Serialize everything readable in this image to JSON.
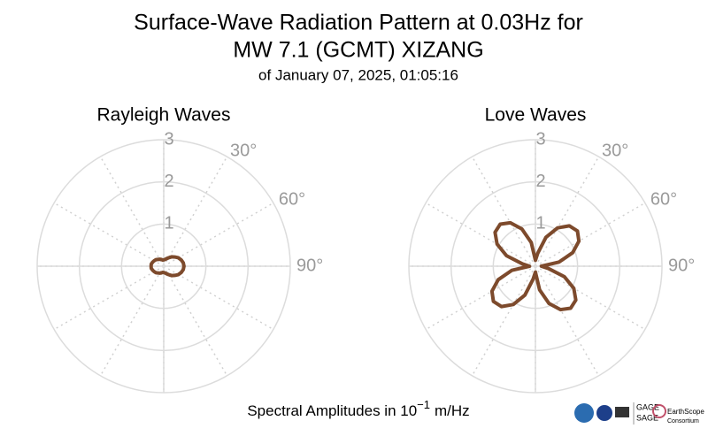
{
  "header": {
    "title": [
      "Surface-Wave Radiation Pattern at 0.03Hz for",
      "MW 7.1 (GCMT) XIZANG"
    ],
    "subtitle": "of January 07, 2025, 01:05:16"
  },
  "caption": {
    "prefix": "Spectral Amplitudes in 10",
    "exponent": "−1",
    "suffix": "m/Hz"
  },
  "logos": [
    "GAGE",
    "SAGE",
    "EarthScope",
    "Consortium"
  ],
  "chart_data": [
    {
      "type": "polar",
      "title": "Rayleigh Waves",
      "color": "#7d4a2c",
      "theta": [
        0,
        10,
        20,
        30,
        40,
        50,
        60,
        70,
        80,
        90,
        100,
        110,
        120,
        130,
        140,
        150,
        160,
        170,
        180,
        190,
        200,
        210,
        220,
        230,
        240,
        250,
        260,
        270,
        280,
        290,
        300,
        310,
        320,
        330,
        340,
        350
      ],
      "values": [
        0.15,
        0.16,
        0.19,
        0.23,
        0.29,
        0.34,
        0.4,
        0.44,
        0.47,
        0.48,
        0.47,
        0.44,
        0.4,
        0.34,
        0.29,
        0.23,
        0.19,
        0.16,
        0.15,
        0.15,
        0.17,
        0.19,
        0.21,
        0.24,
        0.26,
        0.28,
        0.3,
        0.3,
        0.3,
        0.28,
        0.26,
        0.24,
        0.21,
        0.19,
        0.17,
        0.15
      ],
      "rlim": [
        0,
        3
      ],
      "rticks": [
        1,
        2,
        3
      ],
      "thetagrid": [
        0,
        30,
        60,
        90,
        120,
        150,
        180,
        210,
        240,
        270,
        300,
        330
      ],
      "thetaticks": [
        {
          "value": 30,
          "label": "30°"
        },
        {
          "value": 60,
          "label": "60°"
        },
        {
          "value": 90,
          "label": "90°"
        }
      ]
    },
    {
      "type": "polar",
      "title": "Love Waves",
      "color": "#7d4a2c",
      "theta": [
        0,
        10,
        20,
        30,
        40,
        50,
        60,
        70,
        80,
        90,
        100,
        110,
        120,
        130,
        140,
        150,
        160,
        170,
        180,
        190,
        200,
        210,
        220,
        230,
        240,
        250,
        260,
        270,
        280,
        290,
        300,
        310,
        320,
        330,
        340,
        350
      ],
      "values": [
        0.14,
        0.31,
        0.73,
        1.05,
        1.25,
        1.3,
        1.19,
        0.94,
        0.57,
        0.14,
        0.31,
        0.73,
        1.05,
        1.25,
        1.3,
        1.19,
        0.94,
        0.57,
        0.14,
        0.31,
        0.73,
        1.05,
        1.25,
        1.3,
        1.19,
        0.94,
        0.57,
        0.14,
        0.31,
        0.73,
        1.05,
        1.25,
        1.3,
        1.19,
        0.94,
        0.57
      ],
      "rlim": [
        0,
        3
      ],
      "rticks": [
        1,
        2,
        3
      ],
      "thetagrid": [
        0,
        30,
        60,
        90,
        120,
        150,
        180,
        210,
        240,
        270,
        300,
        330
      ],
      "thetaticks": [
        {
          "value": 30,
          "label": "30°"
        },
        {
          "value": 60,
          "label": "60°"
        },
        {
          "value": 90,
          "label": "90°"
        }
      ]
    }
  ]
}
